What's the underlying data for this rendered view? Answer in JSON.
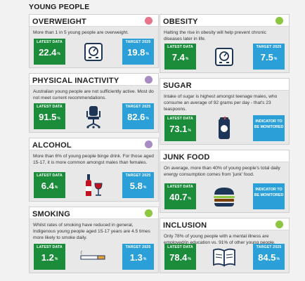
{
  "section_title": "YOUNG PEOPLE",
  "latest_label": "LATEST DATA",
  "target_label": "TARGET 2025",
  "colors": {
    "pink": "#e8738a",
    "green": "#8dc63f",
    "purple": "#a98bc3",
    "latest_box": "#1a8c3a",
    "target_box": "#2a9fd8"
  },
  "cards": {
    "overweight": {
      "title": "OVERWEIGHT",
      "desc": "More than 1 in 5 young people are overweight.",
      "latest": "22.4",
      "latest_unit": "%",
      "target": "19.8",
      "target_unit": "%",
      "icon": "scale-icon"
    },
    "obesity": {
      "title": "OBESITY",
      "desc": "Halting the rise in obesity will help prevent chronic diseases later in life.",
      "latest": "7.4",
      "latest_unit": "%",
      "target": "7.5",
      "target_unit": "%",
      "icon": "scale-icon"
    },
    "inactivity": {
      "title": "PHYSICAL INACTIVITY",
      "desc": "Australian young people are not sufficiently active. Most do not meet current recommendations.",
      "latest": "91.5",
      "latest_unit": "%",
      "target": "82.6",
      "target_unit": "%",
      "icon": "office-chair-icon"
    },
    "sugar": {
      "title": "SUGAR",
      "desc": "Intake of sugar is highest amongst teenage males, who consume an average of 92 grams per day - that's 23 teaspoons.",
      "latest": "73.1",
      "latest_unit": "%",
      "target_note": "INDICATOR TO BE MONITORED",
      "icon": "soda-can-icon"
    },
    "alcohol": {
      "title": "ALCOHOL",
      "desc": "More than 6% of young people binge drink. For those aged 15-17, it is more common amongst males than females.",
      "latest": "6.4",
      "latest_unit": "%",
      "target": "5.8",
      "target_unit": "%",
      "icon": "wine-bottle-glass-icon"
    },
    "junk_food": {
      "title": "JUNK FOOD",
      "desc": "On average, more than 40% of young people's total daily energy consumption comes from 'junk' food.",
      "latest": "40.7",
      "latest_unit": "%",
      "target_note": "INDICATOR TO BE MONITORED",
      "icon": "burger-icon"
    },
    "smoking": {
      "title": "SMOKING",
      "desc": "Whilst rates of smoking have reduced in general, Indigenous young people aged 15-17 years are 4.5 times more likely to smoke daily.",
      "latest": "1.2",
      "latest_unit": "%",
      "target": "1.3",
      "target_unit": "%",
      "icon": "cigarette-icon"
    },
    "inclusion": {
      "title": "INCLUSION",
      "desc": "Only 78% of young people with a mental illness are employed/in education vs. 91% of other young people.",
      "latest": "78.4",
      "latest_unit": "%",
      "target": "84.5",
      "target_unit": "%",
      "icon": "open-book-icon"
    }
  }
}
